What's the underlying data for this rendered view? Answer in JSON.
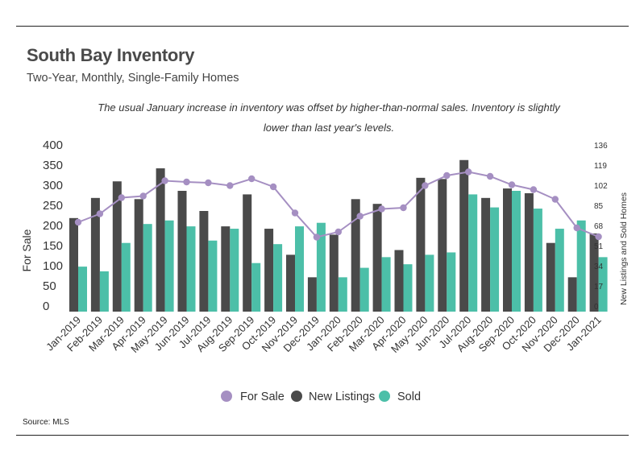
{
  "header": {
    "title": "South Bay Inventory",
    "subtitle": "Two-Year, Monthly, Single-Family Homes",
    "annotation": "The usual January increase in inventory was offset by higher-than-normal sales. Inventory is slightly lower than last year's levels."
  },
  "footer": {
    "source": "Source:  MLS"
  },
  "colors": {
    "for_sale": "#a58fc2",
    "new_listings": "#4a4a4a",
    "sold": "#4cbfa8"
  },
  "chart_data": {
    "type": "bar",
    "categories": [
      "Jan-2019",
      "Feb-2019",
      "Mar-2019",
      "Apr-2019",
      "May-2019",
      "Jun-2019",
      "Jul-2019",
      "Aug-2019",
      "Sep-2019",
      "Oct-2019",
      "Nov-2019",
      "Dec-2019",
      "Jan-2020",
      "Feb-2020",
      "Mar-2020",
      "Apr-2020",
      "May-2020",
      "Jun-2020",
      "Jul-2020",
      "Aug-2020",
      "Sep-2020",
      "Oct-2020",
      "Nov-2020",
      "Dec-2020",
      "Jan-2021"
    ],
    "series": [
      {
        "name": "For Sale",
        "type": "line",
        "axis": "left",
        "values": [
          222,
          243,
          283,
          287,
          325,
          322,
          320,
          313,
          330,
          310,
          245,
          185,
          198,
          237,
          255,
          258,
          313,
          338,
          347,
          336,
          315,
          303,
          279,
          208,
          186
        ]
      },
      {
        "name": "New Listings",
        "type": "bar",
        "axis": "right",
        "values": [
          79,
          96,
          110,
          95,
          121,
          102,
          85,
          72,
          99,
          70,
          48,
          29,
          65,
          95,
          91,
          52,
          113,
          112,
          128,
          96,
          104,
          100,
          58,
          29,
          66
        ]
      },
      {
        "name": "Sold",
        "type": "bar",
        "axis": "right",
        "values": [
          38,
          34,
          58,
          74,
          77,
          72,
          60,
          70,
          41,
          57,
          72,
          75,
          29,
          37,
          46,
          40,
          48,
          50,
          99,
          88,
          102,
          87,
          70,
          77,
          46
        ]
      }
    ],
    "ylabel": "For Sale",
    "y2label": "New Listings and Sold Homes",
    "ylim": [
      0,
      400
    ],
    "y2lim": [
      0,
      136
    ],
    "yticks": [
      "0",
      "50",
      "100",
      "150",
      "200",
      "250",
      "300",
      "350",
      "400"
    ],
    "y2ticks": [
      "0",
      "17",
      "34",
      "51",
      "68",
      "85",
      "102",
      "119",
      "136"
    ],
    "legend": {
      "position": "bottom",
      "items": [
        "For Sale",
        "New Listings",
        "Sold"
      ]
    }
  }
}
